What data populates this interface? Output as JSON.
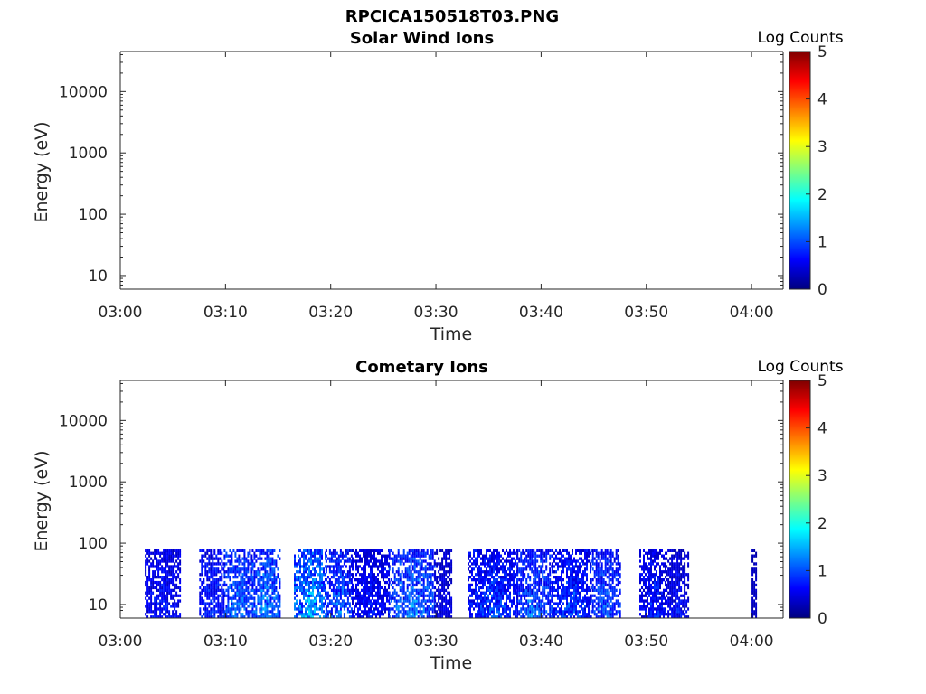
{
  "figure": {
    "title": "RPCICA150518T03.PNG"
  },
  "chart_data": [
    {
      "type": "heatmap",
      "title": "Solar Wind Ions",
      "xlabel": "Time",
      "ylabel": "Energy (eV)",
      "x_range": [
        "03:00",
        "04:03"
      ],
      "y_scale": "log",
      "y_range": [
        6,
        45000
      ],
      "x_ticks": [
        "03:00",
        "03:10",
        "03:20",
        "03:30",
        "03:40",
        "03:50",
        "04:00"
      ],
      "y_ticks": [
        "10",
        "100",
        "1000",
        "10000"
      ],
      "colorbar": {
        "label": "Log Counts",
        "ticks": [
          "0",
          "1",
          "2",
          "3",
          "4",
          "5"
        ],
        "range": [
          0,
          5
        ],
        "colormap": "jet"
      },
      "segments": []
    },
    {
      "type": "heatmap",
      "title": "Cometary Ions",
      "xlabel": "Time",
      "ylabel": "Energy (eV)",
      "x_range": [
        "03:00",
        "04:03"
      ],
      "y_scale": "log",
      "y_range": [
        6,
        45000
      ],
      "x_ticks": [
        "03:00",
        "03:10",
        "03:20",
        "03:30",
        "03:40",
        "03:50",
        "04:00"
      ],
      "y_ticks": [
        "10",
        "100",
        "1000",
        "10000"
      ],
      "colorbar": {
        "label": "Log Counts",
        "ticks": [
          "0",
          "1",
          "2",
          "3",
          "4",
          "5"
        ],
        "range": [
          0,
          5
        ],
        "colormap": "jet"
      },
      "energy_max_eV": 80,
      "segments": [
        {
          "start": "03:02:20",
          "end": "03:05:40",
          "level": 0.5,
          "peak": 0.9
        },
        {
          "start": "03:07:30",
          "end": "03:09:50",
          "level": 0.6,
          "peak": 1.0
        },
        {
          "start": "03:09:50",
          "end": "03:12:30",
          "level": 0.8,
          "peak": 1.4
        },
        {
          "start": "03:12:30",
          "end": "03:15:10",
          "level": 0.9,
          "peak": 1.5
        },
        {
          "start": "03:16:30",
          "end": "03:19:30",
          "level": 1.0,
          "peak": 1.8
        },
        {
          "start": "03:19:30",
          "end": "03:22:00",
          "level": 0.7,
          "peak": 1.5
        },
        {
          "start": "03:22:00",
          "end": "03:25:30",
          "level": 0.5,
          "peak": 0.9
        },
        {
          "start": "03:25:30",
          "end": "03:29:50",
          "level": 0.8,
          "peak": 1.6
        },
        {
          "start": "03:29:50",
          "end": "03:31:30",
          "level": 0.4,
          "peak": 0.7
        },
        {
          "start": "03:33:00",
          "end": "03:37:40",
          "level": 0.6,
          "peak": 1.2
        },
        {
          "start": "03:37:40",
          "end": "03:41:00",
          "level": 0.7,
          "peak": 1.5
        },
        {
          "start": "03:41:00",
          "end": "03:44:40",
          "level": 0.6,
          "peak": 1.2
        },
        {
          "start": "03:44:40",
          "end": "03:47:30",
          "level": 0.7,
          "peak": 1.4
        },
        {
          "start": "03:49:20",
          "end": "03:51:50",
          "level": 0.5,
          "peak": 1.0
        },
        {
          "start": "03:51:50",
          "end": "03:54:00",
          "level": 0.4,
          "peak": 0.9
        },
        {
          "start": "04:00:00",
          "end": "04:00:30",
          "level": 0.3,
          "peak": 0.5
        }
      ]
    }
  ]
}
